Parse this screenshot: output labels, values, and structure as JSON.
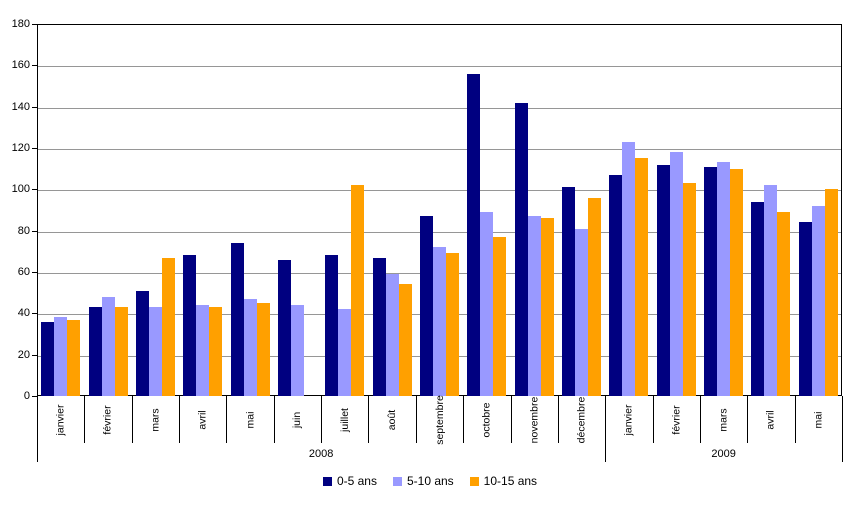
{
  "chart_data": {
    "type": "bar",
    "title": "",
    "xlabel": "",
    "ylabel": "",
    "ylim": [
      0,
      180
    ],
    "ytick_step": 20,
    "grid": true,
    "legend_position": "bottom",
    "categories": [
      "janvier",
      "février",
      "mars",
      "avril",
      "mai",
      "juin",
      "juillet",
      "août",
      "septembre",
      "octobre",
      "novembre",
      "décembre",
      "janvier",
      "février",
      "mars",
      "avril",
      "mai"
    ],
    "year_groups": [
      {
        "label": "2008",
        "months": 12
      },
      {
        "label": "2009",
        "months": 5
      }
    ],
    "series": [
      {
        "name": "0-5 ans",
        "color": "#000080",
        "values": [
          36,
          43,
          51,
          68,
          74,
          66,
          68,
          67,
          87,
          156,
          142,
          101,
          107,
          112,
          111,
          94,
          84
        ]
      },
      {
        "name": "5-10 ans",
        "color": "#9999FF",
        "values": [
          38,
          48,
          43,
          44,
          47,
          44,
          42,
          59,
          72,
          89,
          87,
          81,
          123,
          118,
          113,
          102,
          92
        ]
      },
      {
        "name": "10-15 ans",
        "color": "#FFA000",
        "values": [
          37,
          43,
          67,
          43,
          45,
          0,
          102,
          54,
          69,
          77,
          86,
          96,
          115,
          103,
          110,
          89,
          100
        ]
      }
    ]
  },
  "colors": {
    "background": "#FFFFFF",
    "axis": "#000000",
    "gridline": "#969696"
  }
}
